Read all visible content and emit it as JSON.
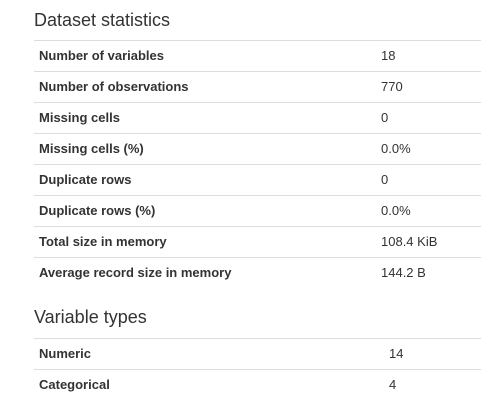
{
  "dataset_statistics": {
    "title": "Dataset statistics",
    "rows": [
      {
        "label": "Number of variables",
        "value": "18"
      },
      {
        "label": "Number of observations",
        "value": "770"
      },
      {
        "label": "Missing cells",
        "value": "0"
      },
      {
        "label": "Missing cells (%)",
        "value": "0.0%"
      },
      {
        "label": "Duplicate rows",
        "value": "0"
      },
      {
        "label": "Duplicate rows (%)",
        "value": "0.0%"
      },
      {
        "label": "Total size in memory",
        "value": "108.4 KiB"
      },
      {
        "label": "Average record size in memory",
        "value": "144.2 B"
      }
    ]
  },
  "variable_types": {
    "title": "Variable types",
    "rows": [
      {
        "label": "Numeric",
        "value": "14"
      },
      {
        "label": "Categorical",
        "value": "4"
      }
    ]
  }
}
